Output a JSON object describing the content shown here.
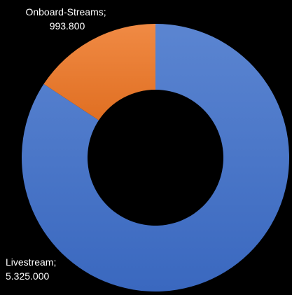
{
  "chart_data": {
    "type": "pie",
    "variant": "doughnut",
    "slices": [
      {
        "name": "Livestream",
        "value": 5325000,
        "value_label": "5.325.000",
        "color": "#4472C4"
      },
      {
        "name": "Onboard-Streams",
        "value": 993800,
        "value_label": "993.800",
        "color": "#ED7D31"
      }
    ],
    "title": "",
    "legend": "none",
    "start_angle_deg": 0,
    "direction": "clockwise"
  }
}
